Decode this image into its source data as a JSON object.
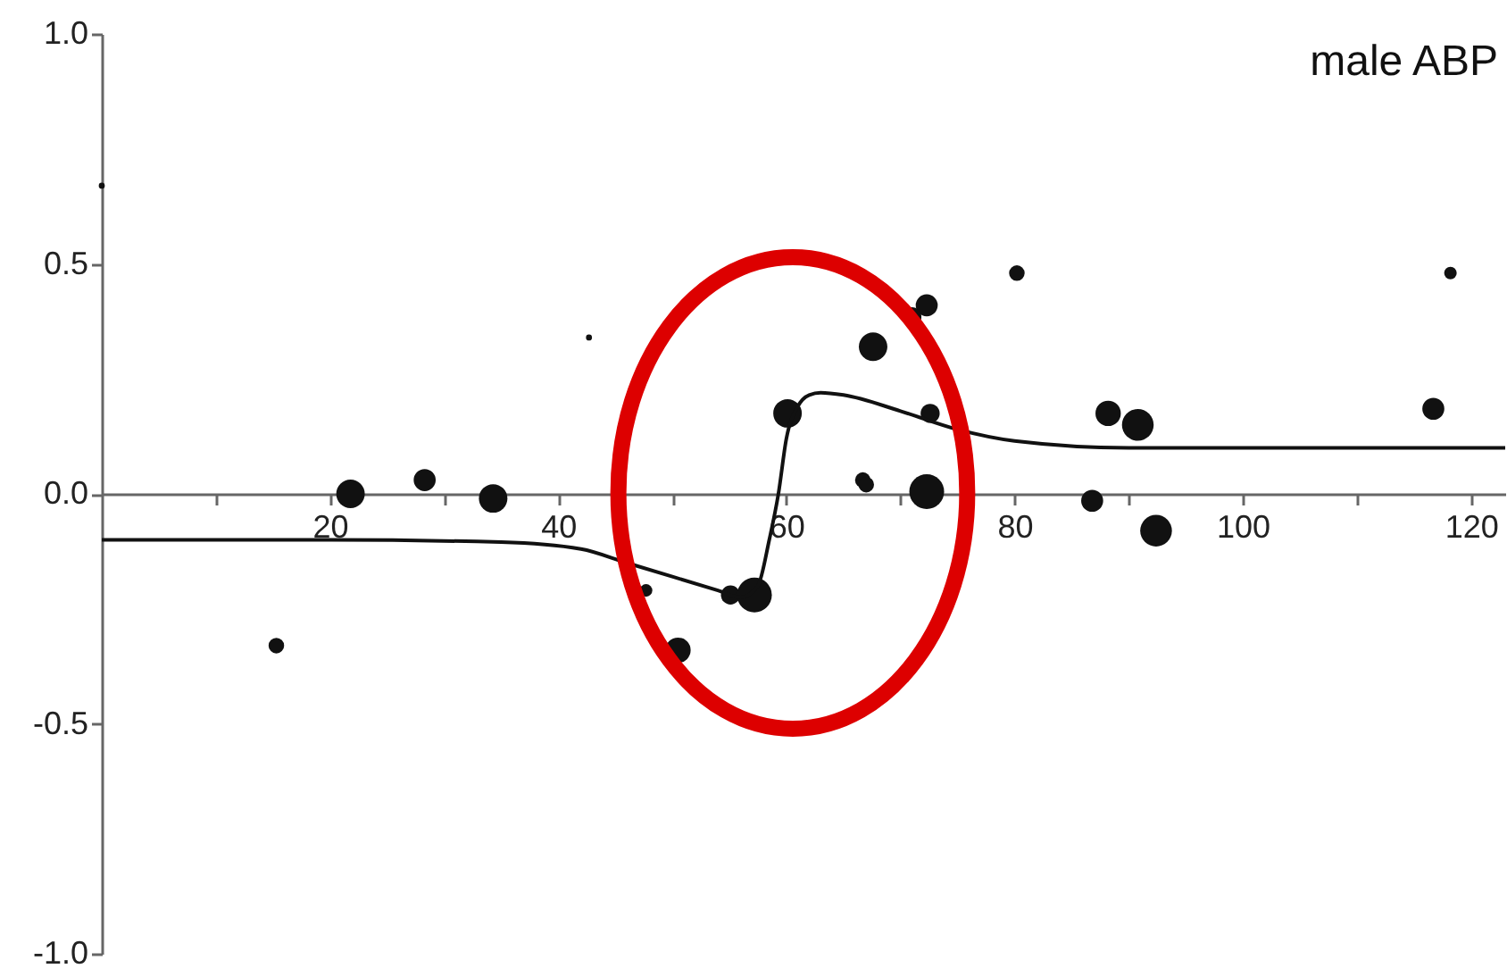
{
  "chart_data": {
    "type": "bubble",
    "title": "male ABP",
    "xlim": [
      0,
      123
    ],
    "xticks": [
      {
        "value": 10,
        "label": null
      },
      20,
      {
        "value": 30,
        "label": null
      },
      40,
      {
        "value": 50,
        "label": null
      },
      60,
      {
        "value": 70,
        "label": null
      },
      80,
      {
        "value": 90,
        "label": null
      },
      100,
      {
        "value": 110,
        "label": null
      },
      120
    ],
    "ylim": [
      -1,
      1
    ],
    "yticks": [
      {
        "value": -1,
        "label": "-1.0"
      },
      {
        "value": -0.5,
        "label": "-0.5"
      },
      {
        "value": 0,
        "label": "0.0"
      },
      {
        "value": 0.5,
        "label": "0.5"
      },
      {
        "value": 1,
        "label": "1.0"
      }
    ],
    "grid": false,
    "series": [
      {
        "color": "#111111",
        "marker": "circle",
        "x": [
          0,
          15.3,
          21.8,
          28.3,
          34.3,
          42.7,
          47.7,
          50.5,
          55.1,
          57.2,
          60.1,
          67.6,
          66.7,
          67.0,
          72.3,
          71.0,
          72.6,
          72.3,
          80.2,
          86.8,
          88.2,
          90.8,
          92.4,
          116.7,
          118.2
        ],
        "values": [
          0.67,
          -0.33,
          0.0,
          0.03,
          -0.01,
          0.34,
          -0.21,
          -0.34,
          -0.22,
          -0.22,
          0.175,
          0.32,
          0.03,
          0.02,
          0.41,
          0.385,
          0.175,
          0.005,
          0.48,
          -0.015,
          0.175,
          0.15,
          -0.08,
          0.185,
          0.48
        ],
        "sizes": [
          0.03,
          0.2,
          0.67,
          0.4,
          0.67,
          0.03,
          0.13,
          0.53,
          0.3,
          1,
          0.67,
          0.67,
          0.2,
          0.2,
          0.4,
          0.3,
          0.3,
          1,
          0.2,
          0.4,
          0.53,
          0.83,
          0.83,
          0.4,
          0.13
        ]
      },
      {
        "type": "line",
        "color": "#111111",
        "marker": "none",
        "line_style": "solid",
        "x": [
          0,
          20,
          35,
          42,
          46,
          50,
          54,
          56,
          57.5,
          58.5,
          59.3,
          60,
          61,
          62,
          63,
          65,
          70,
          75,
          80,
          90,
          100,
          123
        ],
        "values": [
          -0.1,
          -0.1,
          -0.105,
          -0.12,
          -0.15,
          -0.18,
          -0.21,
          -0.225,
          -0.2,
          -0.1,
          0.0,
          0.12,
          0.19,
          0.215,
          0.22,
          0.215,
          0.18,
          0.14,
          0.115,
          0.1,
          0.1,
          0.1
        ]
      }
    ]
  }
}
